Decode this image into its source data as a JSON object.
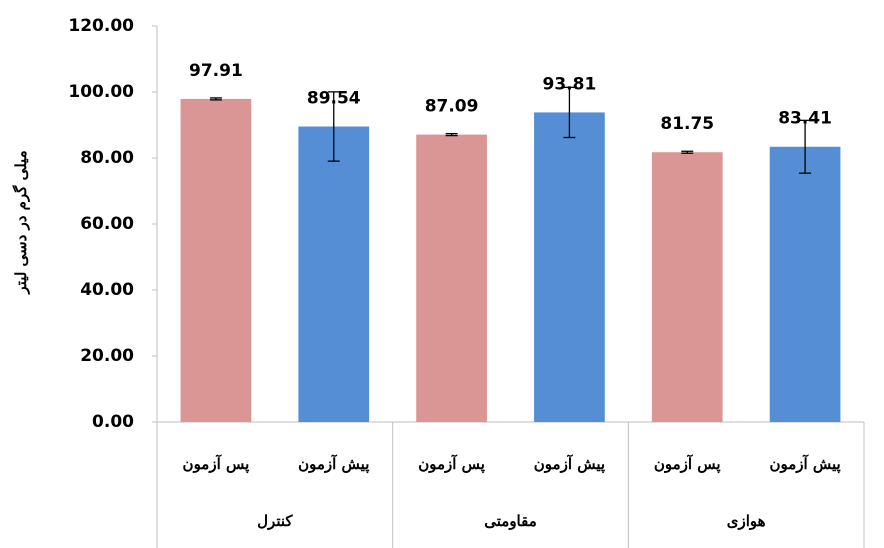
{
  "chart_data": {
    "type": "bar",
    "y_label": "میلی گرم در دسی لیتر",
    "groups": [
      "کنترل",
      "مقاومتی",
      "هوازی"
    ],
    "categories": [
      "پس آزمون",
      "پیش آزمون",
      "پس آزمون",
      "پیش آزمون",
      "پس آزمون",
      "پیش آزمون"
    ],
    "values": [
      97.91,
      89.54,
      87.09,
      93.81,
      81.75,
      83.41
    ],
    "errors": [
      0.3,
      10.5,
      0.3,
      7.6,
      0.3,
      8
    ],
    "colors": [
      "#d99694",
      "#558ed5",
      "#d99694",
      "#558ed5",
      "#d99694",
      "#558ed5"
    ],
    "ylim": [
      0,
      120
    ],
    "yticks": [
      {
        "value": 0,
        "label": "0.00"
      },
      {
        "value": 20,
        "label": "20.00"
      },
      {
        "value": 40,
        "label": "40.00"
      },
      {
        "value": 60,
        "label": "60.00"
      },
      {
        "value": 80,
        "label": "80.00"
      },
      {
        "value": 100,
        "label": "100.00"
      },
      {
        "value": 120,
        "label": "120.00"
      }
    ]
  }
}
